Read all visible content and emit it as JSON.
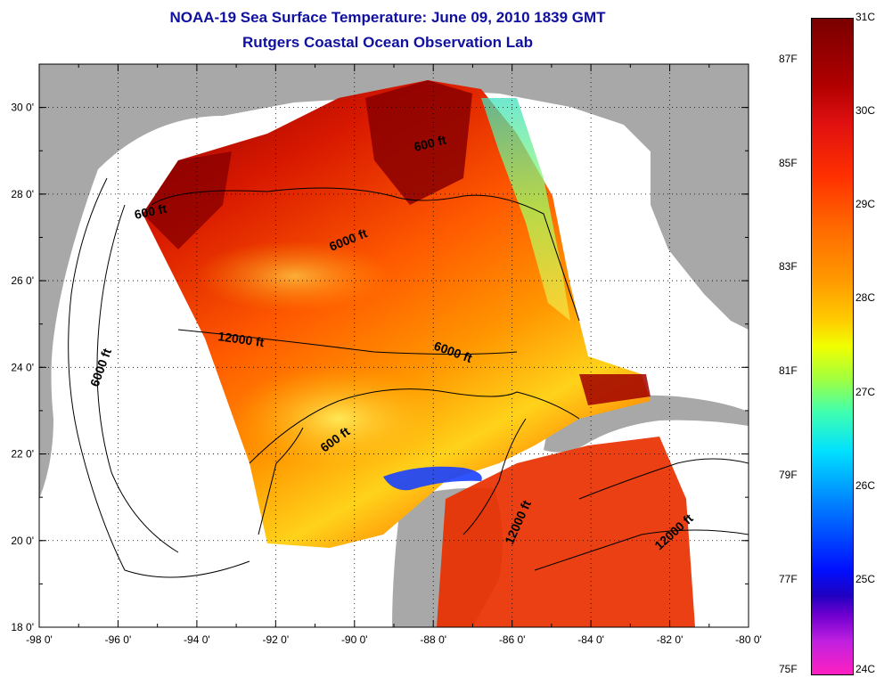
{
  "title": {
    "line1": "NOAA-19 Sea Surface Temperature:  June 09, 2010 1839 GMT",
    "line2": "Rutgers Coastal Ocean Observation Lab"
  },
  "map": {
    "lon_range": [
      -98,
      -80
    ],
    "lat_range": [
      18,
      31
    ],
    "lon_ticks": [
      "-98 0'",
      "-96 0'",
      "-94 0'",
      "-92 0'",
      "-90 0'",
      "-88 0'",
      "-86 0'",
      "-84 0'",
      "-82 0'",
      "-80 0'"
    ],
    "lat_ticks": [
      "18 0'",
      "20 0'",
      "22 0'",
      "24 0'",
      "26 0'",
      "28 0'",
      "30 0'"
    ],
    "grid": "dotted",
    "colors": {
      "land": "#a8a8a8",
      "no_data": "#ffffff",
      "ocean_warm": "#d42000"
    },
    "contour_labels": [
      {
        "text": "600 ft"
      },
      {
        "text": "600 ft"
      },
      {
        "text": "6000 ft"
      },
      {
        "text": "6000 ft"
      },
      {
        "text": "12000 ft"
      },
      {
        "text": "6000 ft"
      },
      {
        "text": "600 ft"
      },
      {
        "text": "12000 ft"
      },
      {
        "text": "12000 ft"
      }
    ]
  },
  "colorbar": {
    "celsius_labels": [
      "31C",
      "30C",
      "29C",
      "28C",
      "27C",
      "26C",
      "25C",
      "24C"
    ],
    "fahrenheit_labels": [
      "87F",
      "85F",
      "83F",
      "81F",
      "79F",
      "77F",
      "75F"
    ]
  }
}
